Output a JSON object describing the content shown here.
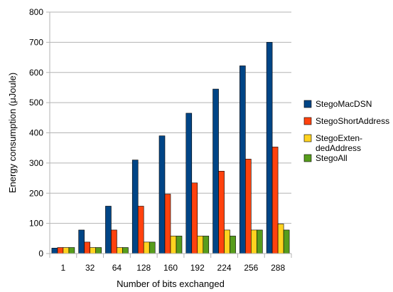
{
  "chart_data": {
    "type": "bar",
    "categories": [
      "1",
      "32",
      "64",
      "128",
      "160",
      "192",
      "224",
      "256",
      "288"
    ],
    "series": [
      {
        "name": "StegoMacDSN",
        "values": [
          18,
          78,
          157,
          310,
          390,
          465,
          545,
          622,
          700
        ],
        "color": "#004586"
      },
      {
        "name": "StegoShortAddress",
        "values": [
          20,
          38,
          78,
          157,
          197,
          234,
          273,
          313,
          353
        ],
        "color": "#ff420e"
      },
      {
        "name": "StegoExtendedAddress",
        "legend_lines": [
          "StegoExten-",
          "dedAddress"
        ],
        "values": [
          20,
          20,
          20,
          38,
          58,
          58,
          78,
          78,
          98
        ],
        "color": "#ffd320"
      },
      {
        "name": "StegoAll",
        "values": [
          20,
          20,
          20,
          38,
          58,
          58,
          58,
          78,
          78
        ],
        "color": "#579d1c"
      }
    ],
    "xlabel": "Number of bits exchanged",
    "ylabel": "Energy consumption (μJoule)",
    "ylim": [
      0,
      800
    ],
    "yticks": [
      0,
      100,
      200,
      300,
      400,
      500,
      600,
      700,
      800
    ],
    "grid": true,
    "legend_position": "right"
  }
}
